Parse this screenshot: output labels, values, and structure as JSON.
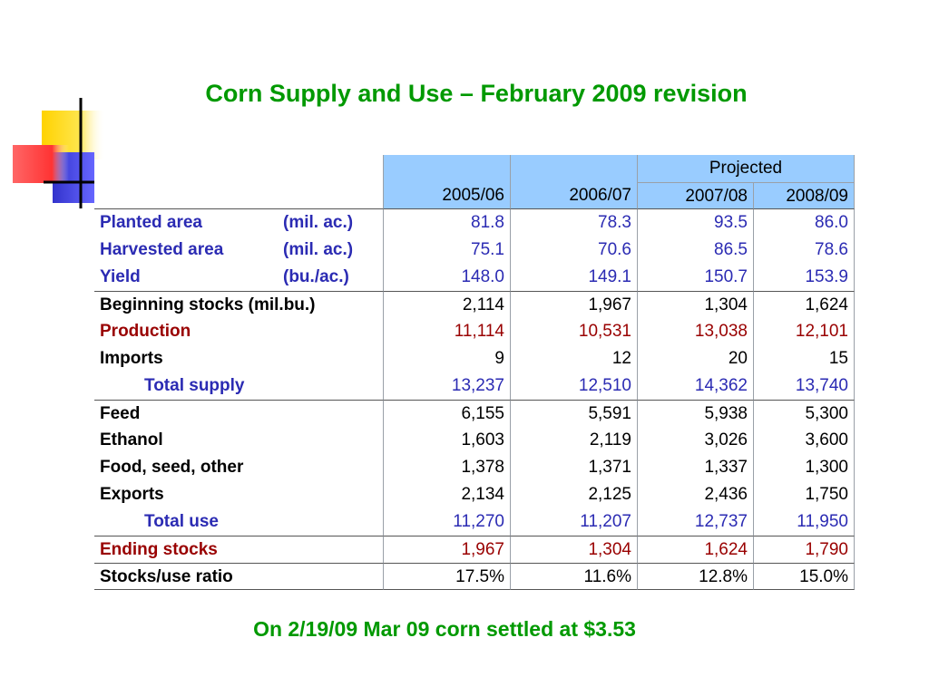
{
  "title": "Corn Supply and Use – February 2009 revision",
  "footer": "On 2/19/09 Mar 09 corn settled at $3.53",
  "table": {
    "projected_label": "Projected",
    "years": [
      "2005/06",
      "2006/07",
      "2007/08",
      "2008/09"
    ],
    "rows": [
      {
        "label": "Planted area",
        "unit": "(mil. ac.)",
        "values": [
          "81.8",
          "78.3",
          "93.5",
          "86.0"
        ],
        "color": "blue"
      },
      {
        "label": "Harvested area",
        "unit": "(mil. ac.)",
        "values": [
          "75.1",
          "70.6",
          "86.5",
          "78.6"
        ],
        "color": "blue"
      },
      {
        "label": "Yield",
        "unit": "(bu./ac.)",
        "values": [
          "148.0",
          "149.1",
          "150.7",
          "153.9"
        ],
        "color": "blue"
      },
      {
        "label": "Beginning stocks (mil.bu.)",
        "unit": "",
        "values": [
          "2,114",
          "1,967",
          "1,304",
          "1,624"
        ],
        "color": "black"
      },
      {
        "label": "Production",
        "unit": "",
        "values": [
          "11,114",
          "10,531",
          "13,038",
          "12,101"
        ],
        "color": "red"
      },
      {
        "label": "Imports",
        "unit": "",
        "values": [
          "9",
          "12",
          "20",
          "15"
        ],
        "color": "black"
      },
      {
        "label": "Total supply",
        "unit": "",
        "values": [
          "13,237",
          "12,510",
          "14,362",
          "13,740"
        ],
        "color": "blue"
      },
      {
        "label": "Feed",
        "unit": "",
        "values": [
          "6,155",
          "5,591",
          "5,938",
          "5,300"
        ],
        "color": "black"
      },
      {
        "label": "Ethanol",
        "unit": "",
        "values": [
          "1,603",
          "2,119",
          "3,026",
          "3,600"
        ],
        "color": "black"
      },
      {
        "label": "Food, seed, other",
        "unit": "",
        "values": [
          "1,378",
          "1,371",
          "1,337",
          "1,300"
        ],
        "color": "black"
      },
      {
        "label": "Exports",
        "unit": "",
        "values": [
          "2,134",
          "2,125",
          "2,436",
          "1,750"
        ],
        "color": "black"
      },
      {
        "label": "Total use",
        "unit": "",
        "values": [
          "11,270",
          "11,207",
          "12,737",
          "11,950"
        ],
        "color": "blue"
      },
      {
        "label": "Ending stocks",
        "unit": "",
        "values": [
          "1,967",
          "1,304",
          "1,624",
          "1,790"
        ],
        "color": "red"
      },
      {
        "label": "Stocks/use ratio",
        "unit": "",
        "values": [
          "17.5%",
          "11.6%",
          "12.8%",
          "15.0%"
        ],
        "color": "black"
      }
    ]
  },
  "colors": {
    "title": "#009900",
    "header_fill": "#99ccff",
    "blue_text": "#2b2bb3",
    "red_text": "#990000"
  }
}
